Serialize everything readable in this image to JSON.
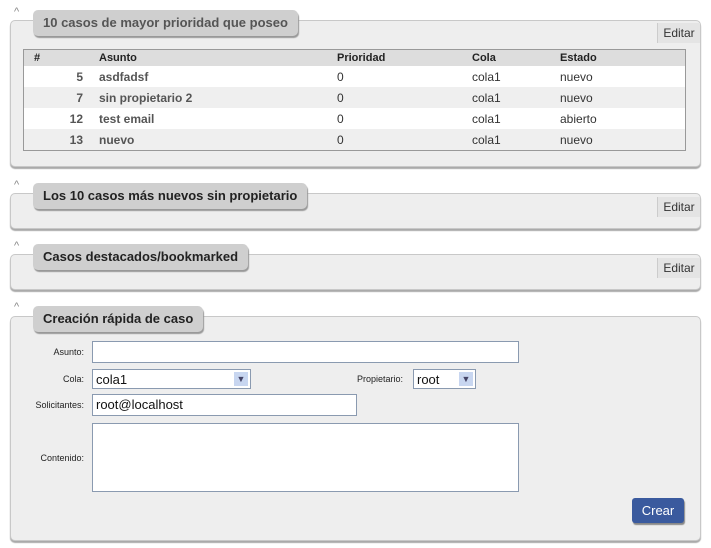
{
  "panels": [
    {
      "title": "10 casos de mayor prioridad que poseo",
      "edit": "Editar"
    },
    {
      "title": "Los 10 casos más nuevos sin propietario",
      "edit": "Editar"
    },
    {
      "title": "Casos destacados/bookmarked",
      "edit": "Editar"
    },
    {
      "title": "Creación rápida de caso"
    }
  ],
  "collapse_icon": "caret-up",
  "table": {
    "headers": [
      "#",
      "Asunto",
      "Prioridad",
      "Cola",
      "Estado"
    ],
    "rows": [
      [
        "5",
        "asdfadsf",
        "0",
        "cola1",
        "nuevo"
      ],
      [
        "7",
        "sin propietario 2",
        "0",
        "cola1",
        "nuevo"
      ],
      [
        "12",
        "test email",
        "0",
        "cola1",
        "abierto"
      ],
      [
        "13",
        "nuevo",
        "0",
        "cola1",
        "nuevo"
      ]
    ]
  },
  "form": {
    "asunto_label": "Asunto:",
    "asunto_value": "",
    "cola_label": "Cola:",
    "cola_value": "cola1",
    "propietario_label": "Propietario:",
    "propietario_value": "root",
    "solicitantes_label": "Solicitantes:",
    "solicitantes_value": "root@localhost",
    "contenido_label": "Contenido:",
    "contenido_value": "",
    "submit": "Crear"
  },
  "colors": {
    "button": "#3a5a9e",
    "panel": "#eeeeee",
    "tab": "#cfcfcf"
  }
}
